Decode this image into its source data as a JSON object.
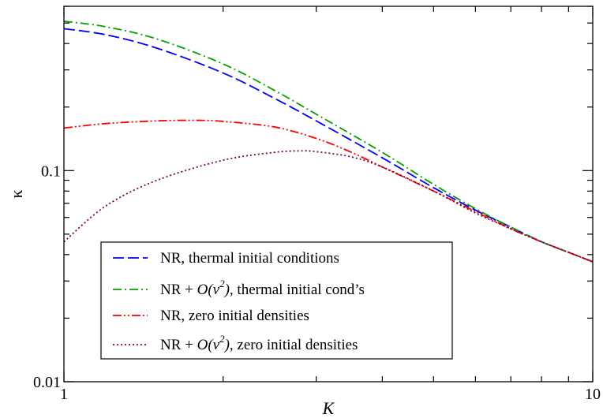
{
  "chart_data": {
    "type": "line",
    "title": "",
    "xlabel": "K",
    "ylabel": "κ",
    "xscale": "log",
    "yscale": "log",
    "xlim": [
      1,
      10
    ],
    "ylim": [
      0.01,
      0.6
    ],
    "x_ticks": [
      {
        "value": 1,
        "label": "1"
      },
      {
        "value": 10,
        "label": "10"
      }
    ],
    "y_ticks": [
      {
        "value": 0.01,
        "label": "0.01"
      },
      {
        "value": 0.1,
        "label": "0.1"
      }
    ],
    "grid": false,
    "legend_position": "bottom-left",
    "series": [
      {
        "name": "NR, thermal initial conditions",
        "color": "#0000ff",
        "dash": "dashed",
        "x": [
          1.0,
          1.2,
          1.5,
          2.0,
          2.5,
          3.0,
          4.0,
          5.0,
          6.0,
          7.0,
          8.0,
          9.0,
          10.0
        ],
        "y": [
          0.47,
          0.44,
          0.38,
          0.29,
          0.22,
          0.172,
          0.115,
          0.083,
          0.065,
          0.054,
          0.046,
          0.041,
          0.037
        ]
      },
      {
        "name": "NR + O(v^2), thermal initial cond's",
        "color": "#00a000",
        "dash": "dash-dot",
        "x": [
          1.0,
          1.2,
          1.5,
          2.0,
          2.5,
          3.0,
          4.0,
          5.0,
          6.0,
          7.0,
          8.0,
          9.0,
          10.0
        ],
        "y": [
          0.51,
          0.48,
          0.42,
          0.32,
          0.24,
          0.185,
          0.122,
          0.086,
          0.066,
          0.054,
          0.046,
          0.041,
          0.037
        ]
      },
      {
        "name": "NR,  zero initial densities",
        "color": "#ff0000",
        "dash": "dash-dot-dot",
        "x": [
          1.0,
          1.2,
          1.5,
          1.8,
          2.0,
          2.5,
          3.0,
          3.5,
          4.0,
          5.0,
          6.0,
          7.0,
          8.0,
          9.0,
          10.0
        ],
        "y": [
          0.159,
          0.167,
          0.172,
          0.173,
          0.171,
          0.161,
          0.142,
          0.122,
          0.104,
          0.08,
          0.064,
          0.053,
          0.046,
          0.041,
          0.037
        ]
      },
      {
        "name": "NR + O(v^2), zero initial densities",
        "color": "#800040",
        "dash": "dotted",
        "x": [
          1.0,
          1.2,
          1.5,
          2.0,
          2.5,
          2.8,
          3.0,
          3.5,
          4.0,
          5.0,
          6.0,
          7.0,
          8.0,
          9.0,
          10.0
        ],
        "y": [
          0.046,
          0.068,
          0.09,
          0.112,
          0.122,
          0.124,
          0.123,
          0.116,
          0.104,
          0.08,
          0.063,
          0.053,
          0.046,
          0.041,
          0.037
        ]
      }
    ]
  },
  "legend": {
    "entries": [
      {
        "prefix": "NR, thermal initial conditions",
        "italic": "",
        "sup": "",
        "after": "",
        "suffix": ""
      },
      {
        "prefix": "NR + ",
        "italic": "O(v",
        "sup": "2",
        "after": "),",
        "suffix": " thermal initial cond’s"
      },
      {
        "prefix": "NR,  zero initial densities",
        "italic": "",
        "sup": "",
        "after": "",
        "suffix": ""
      },
      {
        "prefix": "NR + ",
        "italic": "O(v",
        "sup": "2",
        "after": "),",
        "suffix": " zero initial densities"
      }
    ]
  }
}
